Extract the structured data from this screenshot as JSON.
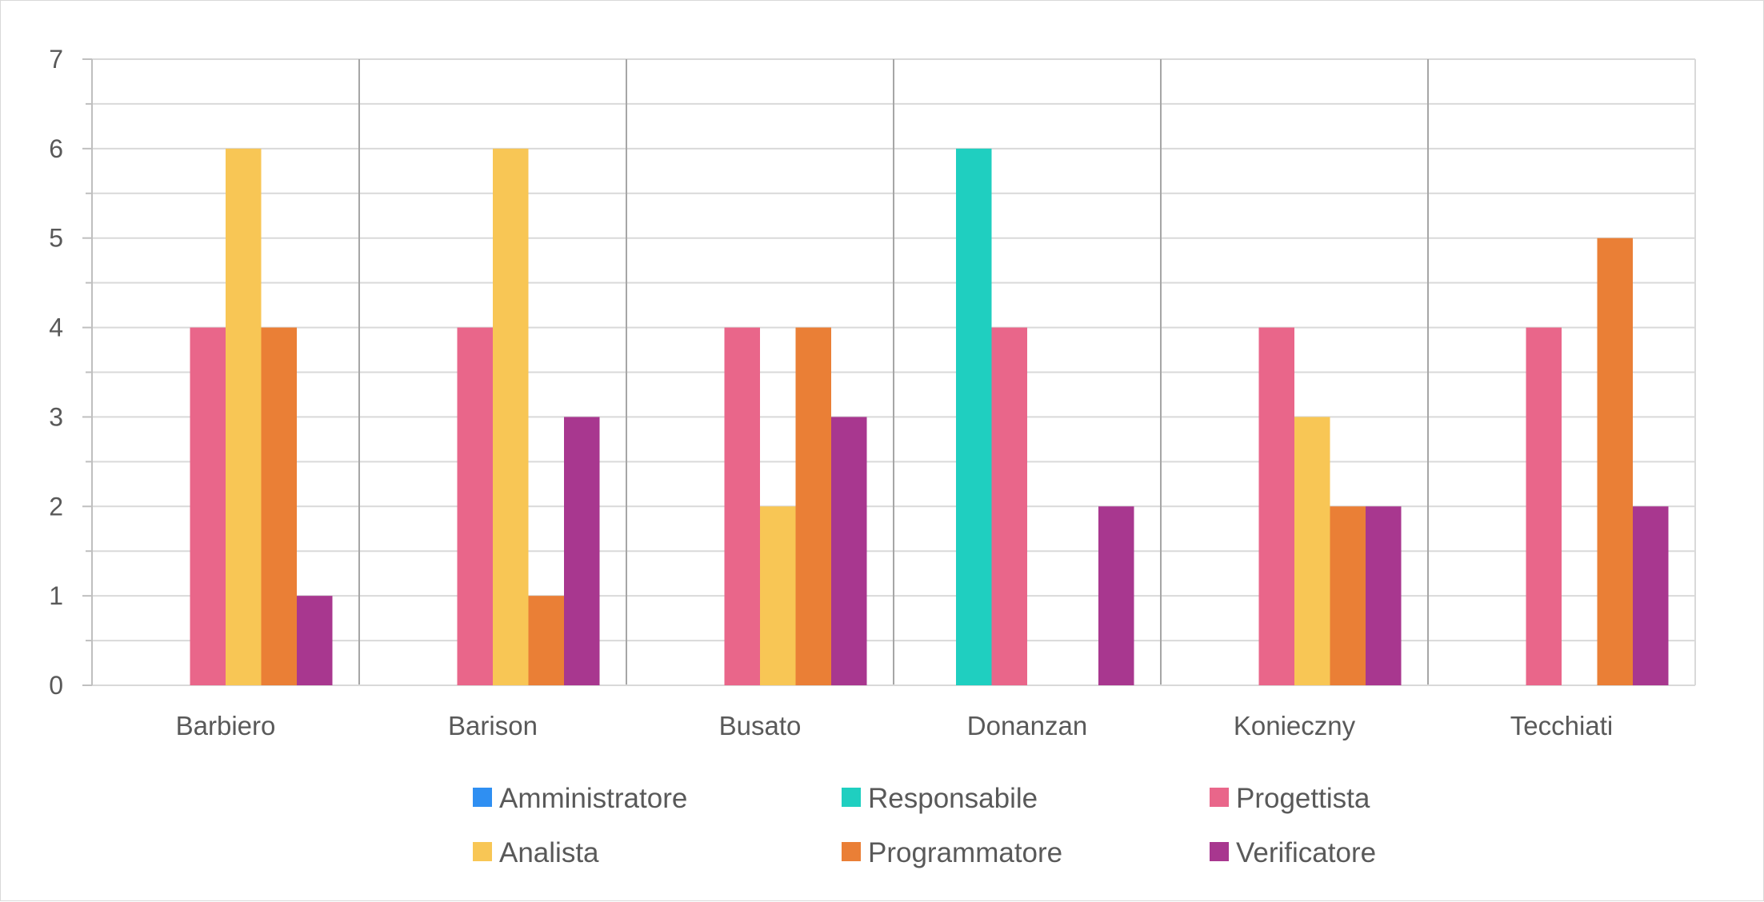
{
  "chart_data": {
    "type": "bar",
    "categories": [
      "Barbiero",
      "Barison",
      "Busato",
      "Donanzan",
      "Konieczny",
      "Tecchiati"
    ],
    "series": [
      {
        "name": "Amministratore",
        "color": "#2f8ff2",
        "values": [
          0,
          0,
          0,
          0,
          0,
          0
        ]
      },
      {
        "name": "Responsabile",
        "color": "#1fcfc0",
        "values": [
          0,
          0,
          0,
          6,
          0,
          0
        ]
      },
      {
        "name": "Progettista",
        "color": "#e9668a",
        "values": [
          4,
          4,
          4,
          4,
          4,
          4
        ]
      },
      {
        "name": "Analista",
        "color": "#f8c655",
        "values": [
          6,
          6,
          2,
          0,
          3,
          0
        ]
      },
      {
        "name": "Programmatore",
        "color": "#ea7f36",
        "values": [
          4,
          1,
          4,
          0,
          2,
          5
        ]
      },
      {
        "name": "Verificatore",
        "color": "#a8378f",
        "values": [
          1,
          3,
          3,
          2,
          2,
          2
        ]
      }
    ],
    "y_ticks": [
      "0",
      "1",
      "2",
      "3",
      "4",
      "5",
      "6",
      "7"
    ],
    "ylim": [
      0,
      7
    ],
    "grid": true,
    "legend_position": "bottom"
  }
}
